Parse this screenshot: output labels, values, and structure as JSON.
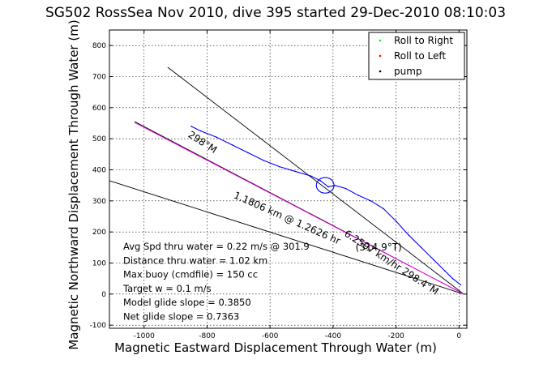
{
  "chart_data": {
    "type": "line",
    "title": "SG502 RossSea Nov 2010, dive 395 started 29-Dec-2010 08:10:03",
    "xlabel": "Magnetic Eastward Displacement Through Water (m)",
    "ylabel": "Magnetic Northward Displacement Through Water (m)",
    "xlim": [
      -1110,
      25
    ],
    "ylim": [
      -110,
      850
    ],
    "xticks": [
      -1000,
      -800,
      -600,
      -400,
      -200,
      0
    ],
    "yticks": [
      -100,
      0,
      100,
      200,
      300,
      400,
      500,
      600,
      700,
      800
    ],
    "grid": true,
    "legend": {
      "placement": "top-right",
      "entries": [
        {
          "label": "Roll to Right",
          "color": "#00ff00",
          "marker": "dot"
        },
        {
          "label": "Roll to Left",
          "color": "#ff0000",
          "marker": "dot"
        },
        {
          "label": "pump",
          "color": "#000000",
          "marker": "dot"
        }
      ]
    },
    "series": [
      {
        "color": "#0000ff",
        "x": [
          5,
          -20,
          -45,
          -80,
          -120,
          -160,
          -200,
          -240,
          -280,
          -320,
          -360,
          -395,
          -415,
          -440,
          -470,
          -520,
          -570,
          -620,
          -670,
          -720,
          -770,
          -820,
          -850
        ],
        "y": [
          30,
          50,
          75,
          110,
          150,
          190,
          235,
          275,
          300,
          318,
          340,
          350,
          345,
          365,
          380,
          395,
          410,
          430,
          455,
          480,
          505,
          525,
          540
        ]
      }
    ],
    "reference_lines": [
      {
        "color": "#000000",
        "x": [
          15,
          -925
        ],
        "y": [
          0,
          730
        ]
      },
      {
        "color": "#000000",
        "x": [
          15,
          -1110
        ],
        "y": [
          0,
          365
        ]
      },
      {
        "color": "#000000",
        "x": [
          15,
          -1030
        ],
        "y": [
          0,
          555
        ]
      },
      {
        "color": "#ff00ff",
        "x": [
          15,
          -1030
        ],
        "y": [
          0,
          552
        ]
      }
    ],
    "loop": {
      "color": "#0000ff",
      "cx": -425,
      "cy": 350,
      "rx": 28,
      "ry": 25
    },
    "line_labels": [
      {
        "text": "298°M",
        "x": -820,
        "y": 480,
        "angle": 33
      },
      {
        "text": "6.2597 km/hr 298.4°M",
        "x": -220,
        "y": 93,
        "angle": 33
      },
      {
        "text": "1.1806 km @ 1.2626 hr",
        "x": -550,
        "y": 235,
        "angle": 24
      },
      {
        "text": "(314.9°T)",
        "x": -255,
        "y": 140,
        "angle": 0
      }
    ],
    "annotations": [
      "Avg Spd thru water =  0.22 m/s @ 301.9",
      "Distance thru water =  1.02 km",
      "Max buoy (cmdfile) = 150 cc",
      "Target w = 0.1 m/s",
      "Model glide slope = 0.3850",
      "Net glide slope = 0.7363"
    ]
  }
}
